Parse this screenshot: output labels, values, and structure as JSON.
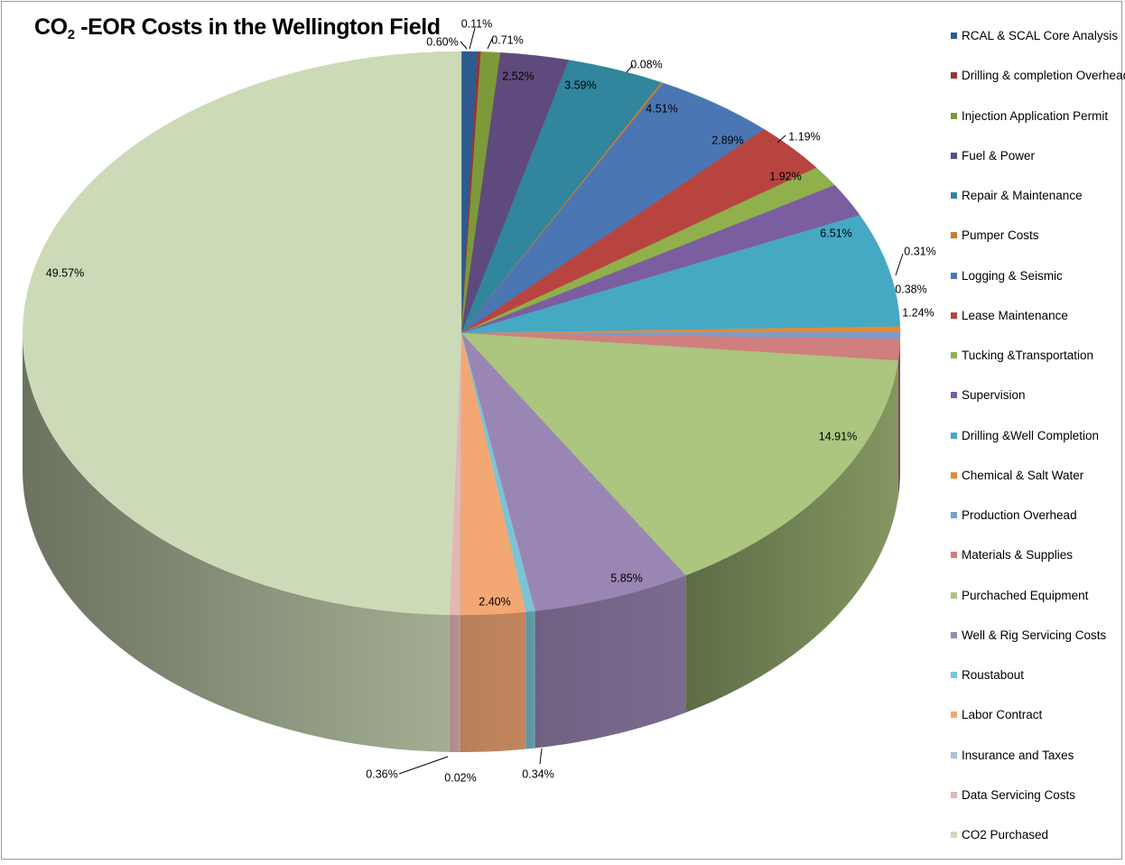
{
  "chart_data": {
    "type": "pie",
    "title_main": "CO",
    "title_sub": "2",
    "title_rest": " -EOR Costs in the Wellington Field",
    "legend_position": "right",
    "slices": [
      {
        "name": "RCAL & SCAL Core Analysis",
        "value": 0.6,
        "label": "0.60%",
        "color": "#2d5a8f"
      },
      {
        "name": "Drilling & completion Overhead",
        "value": 0.11,
        "label": "0.11%",
        "color": "#9c3330"
      },
      {
        "name": "Injection Application Permit",
        "value": 0.71,
        "label": "0.71%",
        "color": "#7c9a3a"
      },
      {
        "name": "Fuel & Power",
        "value": 2.52,
        "label": "2.52%",
        "color": "#5f4a7d"
      },
      {
        "name": "Repair & Maintenance",
        "value": 3.59,
        "label": "3.59%",
        "color": "#31859c"
      },
      {
        "name": "Pumper Costs",
        "value": 0.08,
        "label": "0.08%",
        "color": "#c97b2d"
      },
      {
        "name": "Logging & Seismic",
        "value": 4.51,
        "label": "4.51%",
        "color": "#4a77b4"
      },
      {
        "name": "Lease Maintenance",
        "value": 2.89,
        "label": "2.89%",
        "color": "#b84440"
      },
      {
        "name": "Tucking &Transportation",
        "value": 1.19,
        "label": "1.19%",
        "color": "#8fb04a"
      },
      {
        "name": "Supervision",
        "value": 1.92,
        "label": "1.92%",
        "color": "#7a5ea0"
      },
      {
        "name": "Drilling &Well Completion",
        "value": 6.51,
        "label": "6.51%",
        "color": "#45a9c4"
      },
      {
        "name": "Chemical & Salt Water",
        "value": 0.31,
        "label": "0.31%",
        "color": "#e58a34"
      },
      {
        "name": "Production Overhead",
        "value": 0.38,
        "label": "0.38%",
        "color": "#7b9cce"
      },
      {
        "name": "Materials & Supplies",
        "value": 1.24,
        "label": "1.24%",
        "color": "#cf7f7d"
      },
      {
        "name": "Purchached Equipment",
        "value": 14.91,
        "label": "14.91%",
        "color": "#acc57f"
      },
      {
        "name": "Well & Rig Servicing Costs",
        "value": 5.85,
        "label": "5.85%",
        "color": "#9a86b4"
      },
      {
        "name": "Roustabout",
        "value": 0.34,
        "label": "0.34%",
        "color": "#7cc3d6"
      },
      {
        "name": "Labor Contract",
        "value": 2.4,
        "label": "2.40%",
        "color": "#f3a874"
      },
      {
        "name": "Insurance and Taxes",
        "value": 0.02,
        "label": "0.02%",
        "color": "#a8bede"
      },
      {
        "name": "Data Servicing Costs",
        "value": 0.36,
        "label": "0.36%",
        "color": "#e4b6b5"
      },
      {
        "name": "CO2 Purchased",
        "value": 49.57,
        "label": "49.57%",
        "color": "#ccdab7"
      }
    ]
  }
}
